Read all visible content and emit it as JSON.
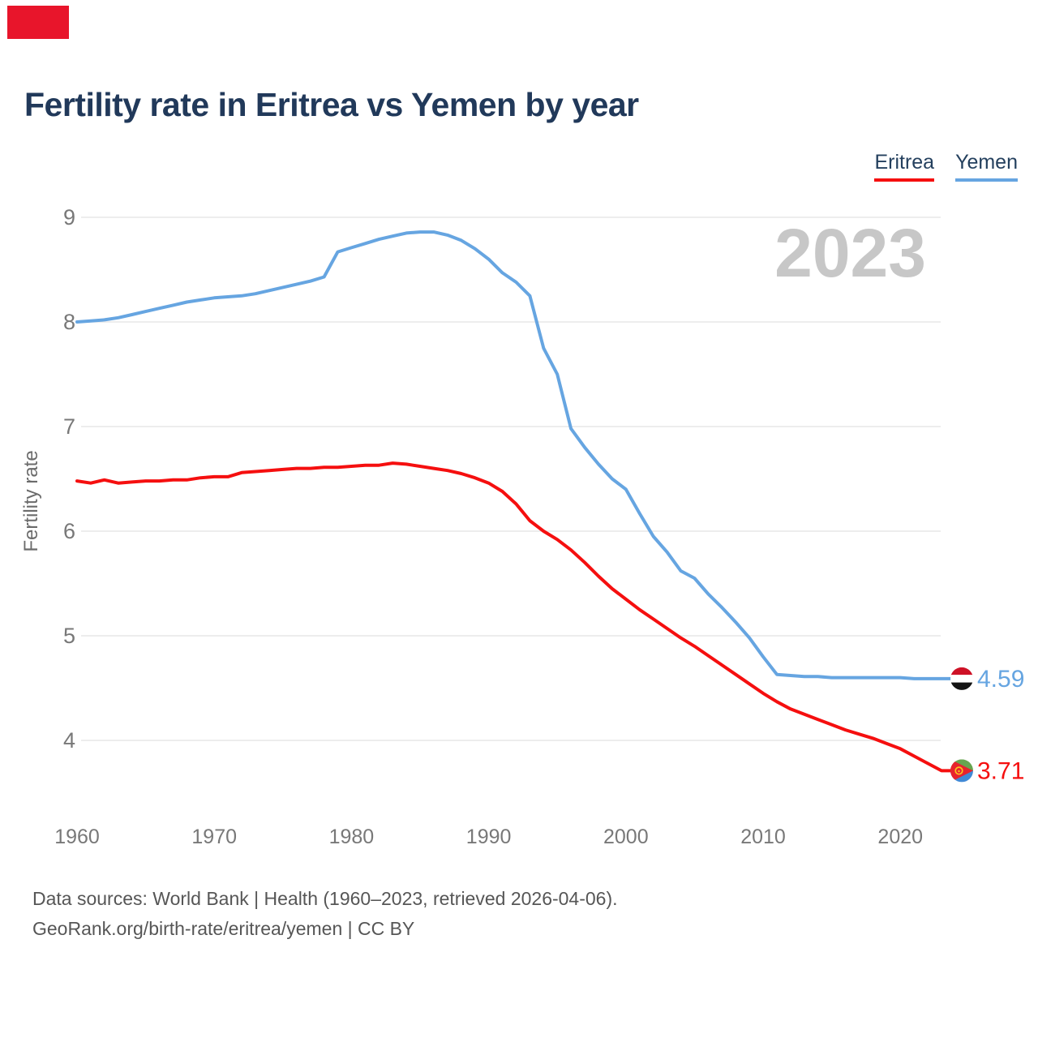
{
  "title": "Fertility rate in Eritrea vs Yemen by year",
  "watermark_year": "2023",
  "footer": {
    "line1": "Data sources: World Bank | Health (1960–2023, retrieved 2026-04-06).",
    "line2": "GeoRank.org/birth-rate/eritrea/yemen | CC BY"
  },
  "colors": {
    "eritrea_red": "#f50f0f",
    "yemen_blue": "#66a5e1",
    "title_navy": "#21395a",
    "axis_text": "#787878",
    "axis_label": "#6b6b6b",
    "grid": "#e7e7e7",
    "watermark": "#c7c7c7",
    "footer_text": "#565656",
    "corner_marker": "#e8152b",
    "flag_yemen": [
      "#ce1126",
      "#ffffff",
      "#141414"
    ],
    "flag_eritrea": [
      "#67a550",
      "#4189d6",
      "#e8232d",
      "#fbc21f"
    ]
  },
  "chart_data": {
    "type": "line",
    "title": "Fertility rate in Eritrea vs Yemen by year",
    "xlabel": "",
    "ylabel": "Fertility rate",
    "watermark": "2023",
    "grid": true,
    "legend_position": "top-right",
    "ylim": [
      3.55,
      9.25
    ],
    "yticks": [
      4,
      5,
      6,
      7,
      8,
      9
    ],
    "xticks": [
      1960,
      1970,
      1980,
      1990,
      2000,
      2010,
      2020
    ],
    "years": [
      1960,
      1961,
      1962,
      1963,
      1964,
      1965,
      1966,
      1967,
      1968,
      1969,
      1970,
      1971,
      1972,
      1973,
      1974,
      1975,
      1976,
      1977,
      1978,
      1979,
      1980,
      1981,
      1982,
      1983,
      1984,
      1985,
      1986,
      1987,
      1988,
      1989,
      1990,
      1991,
      1992,
      1993,
      1994,
      1995,
      1996,
      1997,
      1998,
      1999,
      2000,
      2001,
      2002,
      2003,
      2004,
      2005,
      2006,
      2007,
      2008,
      2009,
      2010,
      2011,
      2012,
      2013,
      2014,
      2015,
      2016,
      2017,
      2018,
      2019,
      2020,
      2021,
      2022,
      2023
    ],
    "series": [
      {
        "name": "Eritrea",
        "color": "#f50f0f",
        "end_label": "3.71",
        "values": [
          6.48,
          6.46,
          6.49,
          6.46,
          6.47,
          6.48,
          6.48,
          6.49,
          6.49,
          6.51,
          6.52,
          6.52,
          6.56,
          6.57,
          6.58,
          6.59,
          6.6,
          6.6,
          6.61,
          6.61,
          6.62,
          6.63,
          6.63,
          6.65,
          6.64,
          6.62,
          6.6,
          6.58,
          6.55,
          6.51,
          6.46,
          6.38,
          6.26,
          6.1,
          6.0,
          5.92,
          5.82,
          5.7,
          5.57,
          5.45,
          5.35,
          5.25,
          5.16,
          5.07,
          4.98,
          4.9,
          4.81,
          4.72,
          4.63,
          4.54,
          4.45,
          4.37,
          4.3,
          4.25,
          4.2,
          4.15,
          4.1,
          4.06,
          4.02,
          3.97,
          3.92,
          3.85,
          3.78,
          3.71
        ]
      },
      {
        "name": "Yemen",
        "color": "#66a5e1",
        "end_label": "4.59",
        "values": [
          8.0,
          8.01,
          8.02,
          8.04,
          8.07,
          8.1,
          8.13,
          8.16,
          8.19,
          8.21,
          8.23,
          8.24,
          8.25,
          8.27,
          8.3,
          8.33,
          8.36,
          8.39,
          8.43,
          8.67,
          8.71,
          8.75,
          8.79,
          8.82,
          8.85,
          8.86,
          8.86,
          8.83,
          8.78,
          8.7,
          8.6,
          8.47,
          8.38,
          8.25,
          7.75,
          7.5,
          6.98,
          6.8,
          6.64,
          6.5,
          6.4,
          6.17,
          5.95,
          5.8,
          5.62,
          5.55,
          5.4,
          5.27,
          5.13,
          4.98,
          4.8,
          4.63,
          4.62,
          4.61,
          4.61,
          4.6,
          4.6,
          4.6,
          4.6,
          4.6,
          4.6,
          4.59,
          4.59,
          4.59
        ]
      }
    ]
  }
}
